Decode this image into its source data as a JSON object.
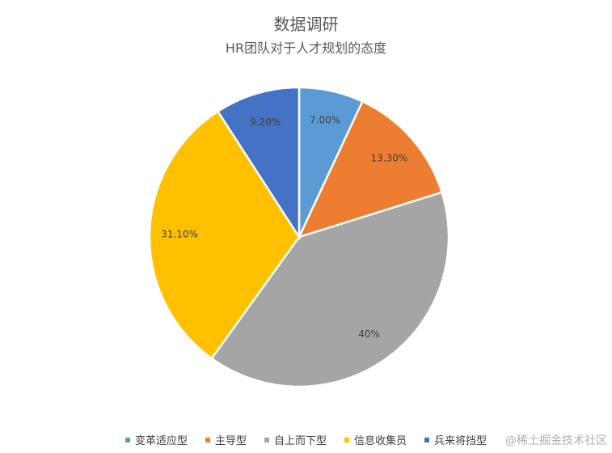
{
  "chart_data": {
    "type": "pie",
    "title": "数据调研",
    "subtitle": "HR团队对于人才规划的态度",
    "slices": [
      {
        "label": "变革适应型",
        "value": 7.0,
        "display": "7.00%",
        "color": "#5B9BD5"
      },
      {
        "label": "主导型",
        "value": 13.3,
        "display": "13.30%",
        "color": "#ED7D31"
      },
      {
        "label": "自上而下型",
        "value": 40.0,
        "display": "40%",
        "color": "#A5A5A5"
      },
      {
        "label": "信息收集员",
        "value": 31.1,
        "display": "31.10%",
        "color": "#FFC000"
      },
      {
        "label": "兵来将挡型",
        "value": 9.2,
        "display": "9.20%",
        "color": "#4472C4"
      }
    ],
    "legend_position": "bottom"
  },
  "watermark": "@稀土掘金技术社区"
}
